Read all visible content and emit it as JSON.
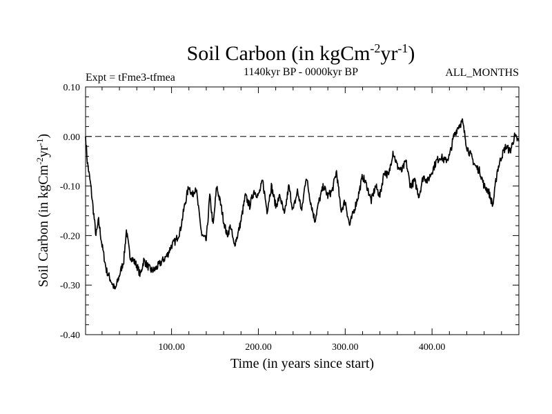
{
  "chart_data": {
    "type": "line",
    "title": "Soil Carbon (in kgCm",
    "title_sup1": "-2",
    "title_mid": "yr",
    "title_sup2": "-1",
    "title_end": ")",
    "left_string": "Expt = tFme3-tfmea",
    "center_string": "1140kyr BP - 0000kyr BP",
    "right_string": "ALL_MONTHS",
    "xlabel": "Time (in years since start)",
    "ylabel_parts": [
      "Soil Carbon (in kgCm",
      "-2",
      "yr",
      "-1",
      ")"
    ],
    "xlim": [
      1,
      500
    ],
    "ylim": [
      -0.4,
      0.1
    ],
    "x_ticks": [
      100,
      200,
      300,
      400
    ],
    "x_tick_labels": [
      "100.00",
      "200.00",
      "300.00",
      "400.00"
    ],
    "y_ticks": [
      -0.4,
      -0.3,
      -0.2,
      -0.1,
      0.0,
      0.1
    ],
    "y_tick_labels": [
      "-0.40",
      "-0.30",
      "-0.20",
      "-0.10",
      "0.00",
      "0.10"
    ],
    "reference_line": 0.0,
    "series": [
      {
        "name": "Soil Carbon",
        "color": "#000000",
        "anchors_x": [
          1,
          3,
          7,
          10,
          13,
          16,
          20,
          25,
          30,
          35,
          40,
          45,
          48,
          52,
          56,
          60,
          64,
          68,
          72,
          76,
          80,
          85,
          90,
          95,
          100,
          105,
          110,
          115,
          120,
          124,
          128,
          132,
          135,
          140,
          144,
          148,
          152,
          157,
          160,
          164,
          168,
          172,
          176,
          180,
          185,
          190,
          195,
          200,
          205,
          210,
          215,
          220,
          225,
          230,
          235,
          240,
          245,
          250,
          255,
          260,
          265,
          270,
          275,
          280,
          285,
          290,
          295,
          300,
          305,
          310,
          315,
          320,
          325,
          330,
          335,
          340,
          345,
          350,
          355,
          360,
          365,
          370,
          375,
          380,
          385,
          390,
          395,
          400,
          405,
          410,
          415,
          420,
          425,
          430,
          435,
          440,
          445,
          450,
          455,
          460,
          465,
          470,
          475,
          480,
          485,
          490,
          495,
          500
        ],
        "anchors_y": [
          0.0,
          -0.05,
          -0.1,
          -0.15,
          -0.2,
          -0.17,
          -0.22,
          -0.27,
          -0.29,
          -0.31,
          -0.28,
          -0.25,
          -0.19,
          -0.24,
          -0.25,
          -0.26,
          -0.28,
          -0.25,
          -0.26,
          -0.27,
          -0.27,
          -0.26,
          -0.25,
          -0.24,
          -0.22,
          -0.21,
          -0.19,
          -0.14,
          -0.1,
          -0.12,
          -0.1,
          -0.16,
          -0.2,
          -0.21,
          -0.12,
          -0.18,
          -0.1,
          -0.14,
          -0.17,
          -0.2,
          -0.18,
          -0.22,
          -0.2,
          -0.17,
          -0.12,
          -0.14,
          -0.11,
          -0.12,
          -0.09,
          -0.15,
          -0.1,
          -0.14,
          -0.12,
          -0.16,
          -0.1,
          -0.15,
          -0.11,
          -0.15,
          -0.08,
          -0.13,
          -0.17,
          -0.13,
          -0.1,
          -0.12,
          -0.11,
          -0.07,
          -0.15,
          -0.13,
          -0.18,
          -0.15,
          -0.12,
          -0.08,
          -0.1,
          -0.13,
          -0.1,
          -0.12,
          -0.07,
          -0.08,
          -0.03,
          -0.06,
          -0.07,
          -0.05,
          -0.1,
          -0.09,
          -0.12,
          -0.08,
          -0.09,
          -0.07,
          -0.05,
          -0.04,
          -0.05,
          -0.04,
          0.0,
          0.02,
          0.03,
          -0.02,
          -0.04,
          -0.06,
          -0.07,
          -0.1,
          -0.11,
          -0.14,
          -0.07,
          -0.04,
          -0.02,
          -0.03,
          0.0,
          -0.01
        ]
      }
    ]
  }
}
